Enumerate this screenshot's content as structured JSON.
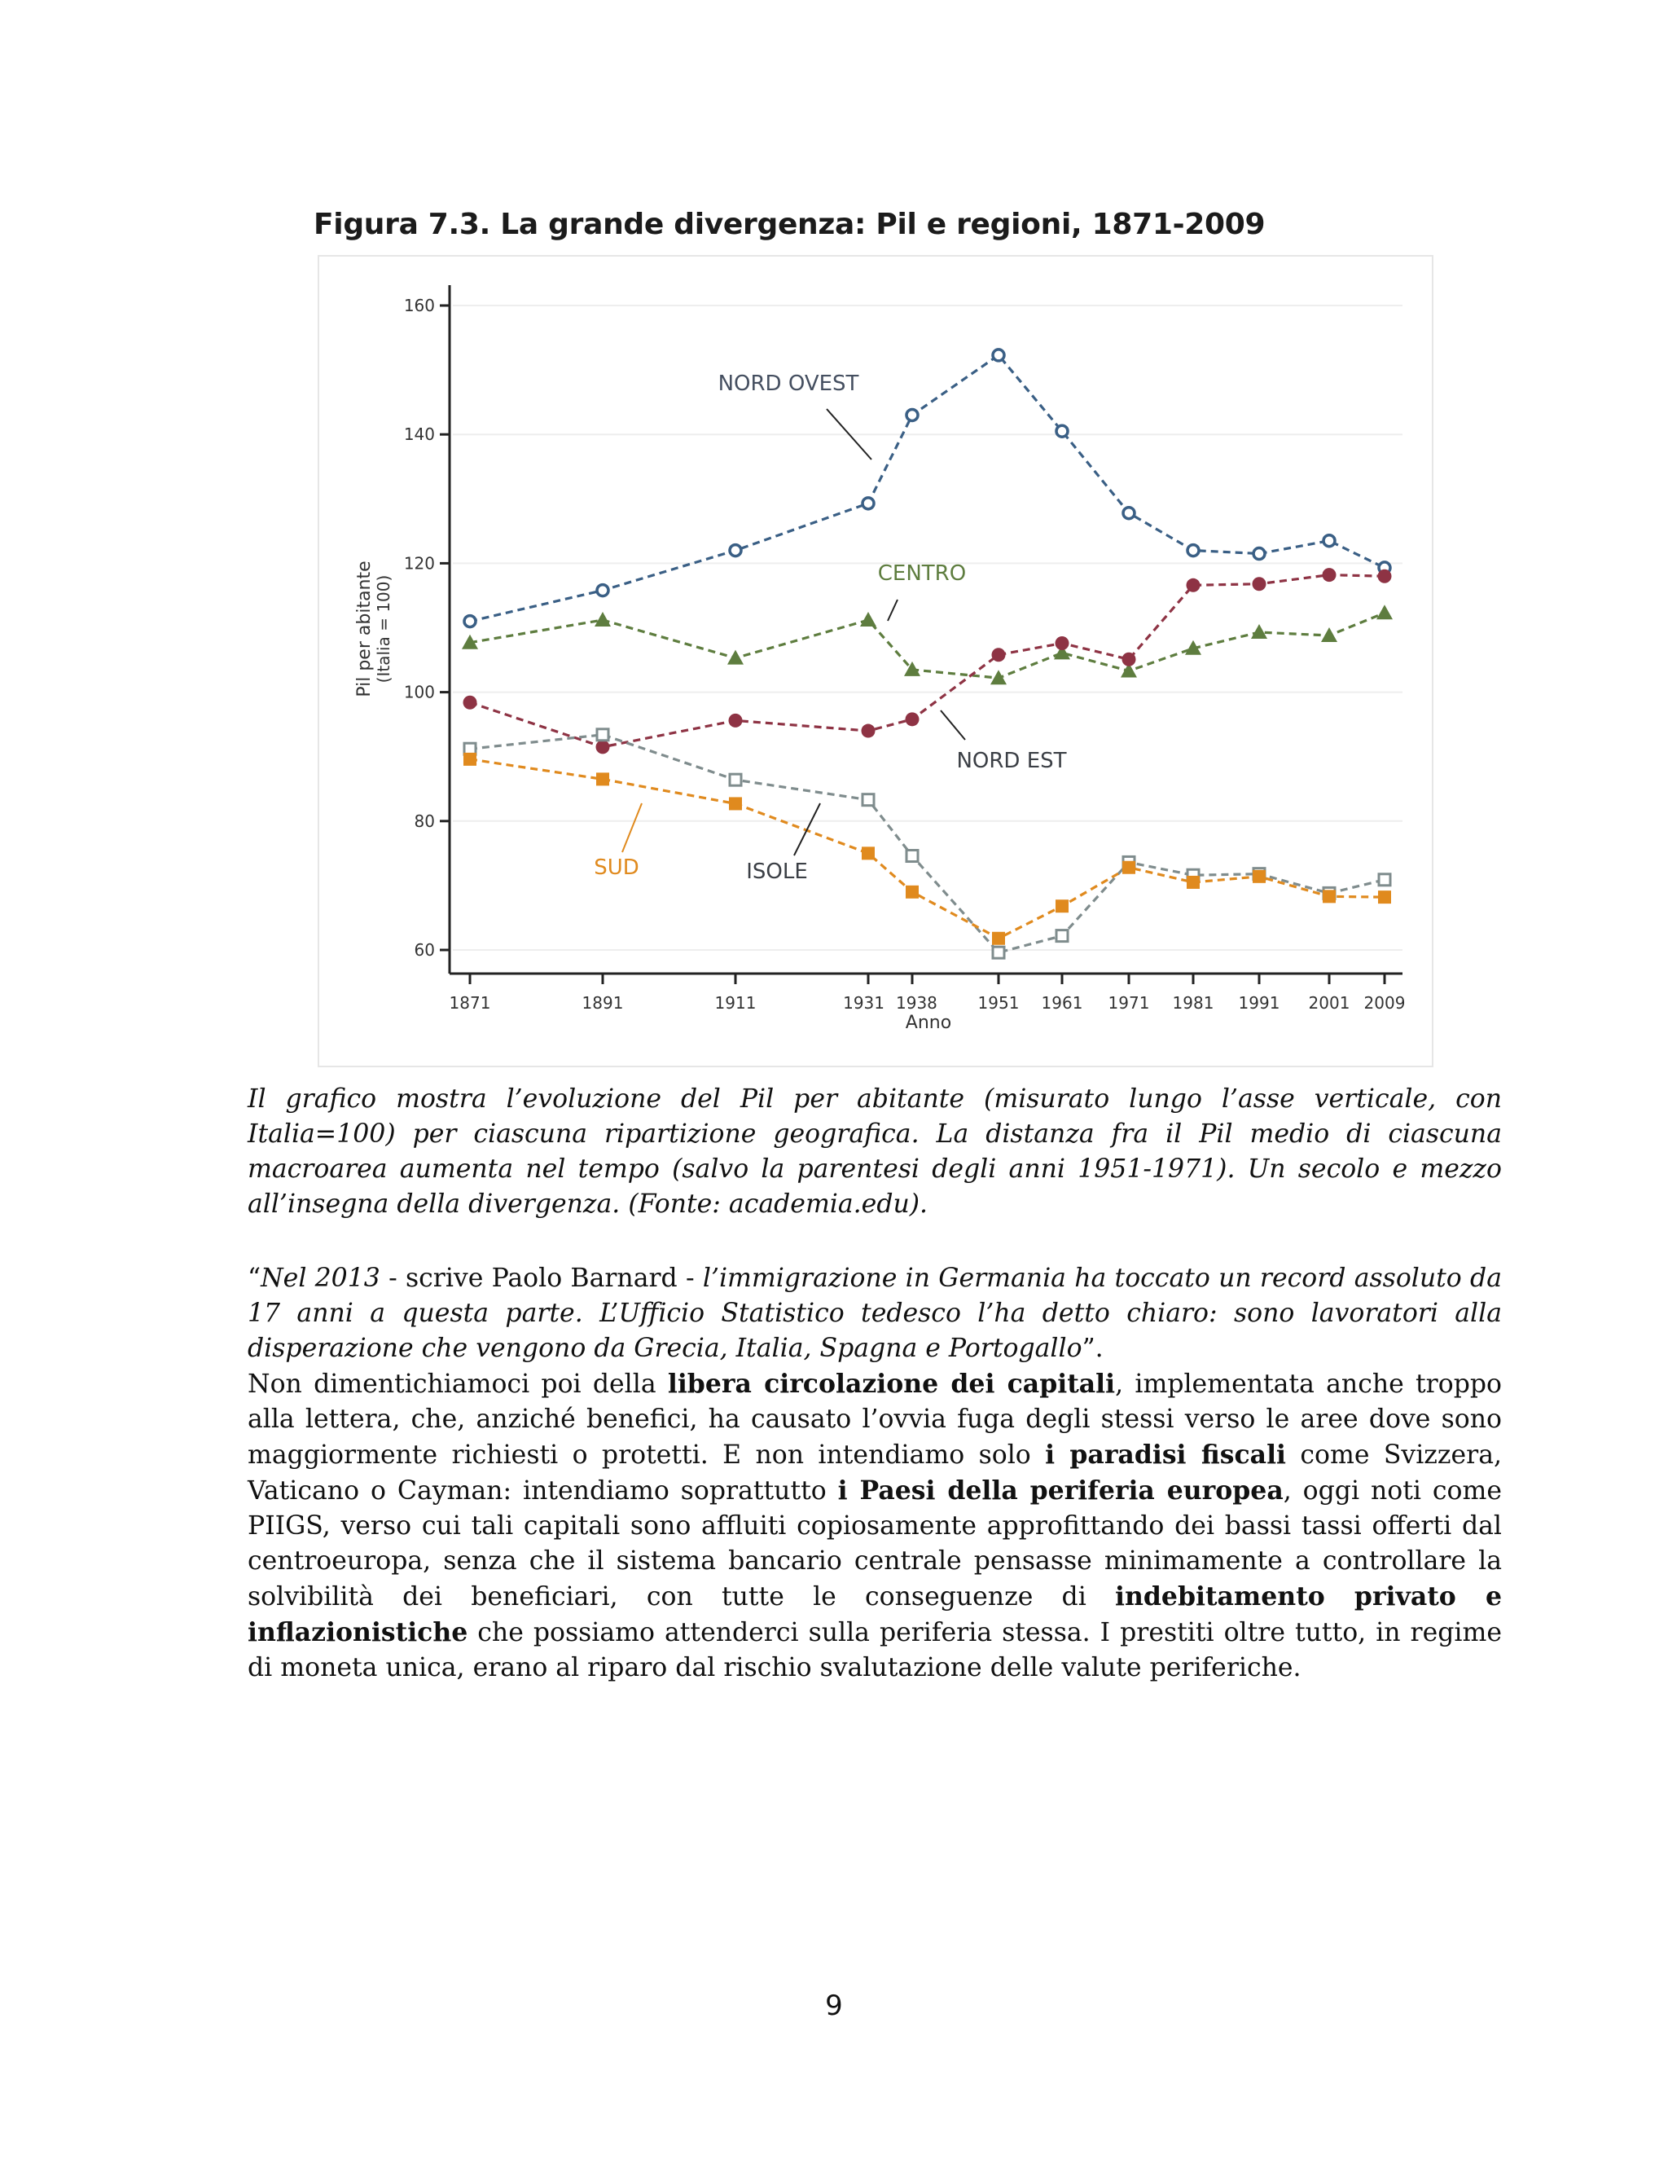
{
  "figure": {
    "title": "Figura 7.3. La grande divergenza: Pil e regioni, 1871-2009"
  },
  "chart_data": {
    "type": "line",
    "title": "",
    "xlabel": "Anno",
    "ylabel": "Pil per abitante",
    "ylabel_sub": "(Italia = 100)",
    "x": [
      1871,
      1891,
      1911,
      1931,
      1938,
      1951,
      1961,
      1971,
      1981,
      1991,
      2001,
      2009
    ],
    "x_tick_labels": [
      "1871",
      "1891",
      "1911",
      "1931",
      "1938",
      "1951",
      "1961",
      "1971",
      "1981",
      "1991",
      "2001",
      "2009"
    ],
    "y_ticks": [
      60,
      80,
      100,
      120,
      140,
      160
    ],
    "y_tick_labels": [
      "60",
      "80",
      "100",
      "120",
      "140",
      "160"
    ],
    "ylim": [
      58,
      162
    ],
    "grid": true,
    "series": [
      {
        "name": "NORD OVEST",
        "color": "#3a5f85",
        "marker": "circle-open",
        "values": [
          111,
          115.8,
          122,
          129.3,
          143,
          152.3,
          140.5,
          127.8,
          122,
          121.5,
          123.5,
          119.3
        ]
      },
      {
        "name": "CENTRO",
        "color": "#5e7d3f",
        "marker": "triangle",
        "values": [
          107.7,
          111.2,
          105.3,
          111.2,
          103.5,
          102.2,
          106.1,
          103.3,
          106.8,
          109.3,
          108.8,
          112.3
        ]
      },
      {
        "name": "NORD EST",
        "color": "#8e3344",
        "marker": "circle",
        "values": [
          98.4,
          91.5,
          95.6,
          94,
          95.8,
          105.8,
          107.6,
          105.1,
          116.6,
          116.8,
          118.2,
          118
        ]
      },
      {
        "name": "ISOLE",
        "color": "#7f8c8d",
        "marker": "square-open",
        "values": [
          91.2,
          93.4,
          86.4,
          83.3,
          74.6,
          59.6,
          62.2,
          73.6,
          71.6,
          71.8,
          68.8,
          70.9
        ]
      },
      {
        "name": "SUD",
        "color": "#e08a1e",
        "marker": "square",
        "values": [
          89.6,
          86.5,
          82.7,
          75,
          69,
          61.8,
          66.8,
          72.8,
          70.5,
          71.4,
          68.3,
          68.2
        ]
      }
    ],
    "labels": [
      {
        "text": "NORD OVEST",
        "color": "#454f60",
        "series": 0
      },
      {
        "text": "CENTRO",
        "color": "#5e7d3f",
        "series": 1
      },
      {
        "text": "NORD EST",
        "color": "#3b3f45",
        "series": 2
      },
      {
        "text": "ISOLE",
        "color": "#3b3f45",
        "series": 3
      },
      {
        "text": "SUD",
        "color": "#e08a1e",
        "series": 4
      }
    ]
  },
  "caption": "Il grafico mostra l’evoluzione del Pil per abitante (misurato lungo l’asse verticale, con Italia=100) per ciascuna ripartizione geografica. La distanza fra il Pil medio di ciascuna macroarea aumenta nel tempo (salvo la parentesi degli anni 1951-1971). Un secolo e mezzo all’insegna della divergenza. (Fonte: academia.edu).",
  "quote": {
    "open": "“",
    "part1": "Nel 2013",
    "part2": " - scrive Paolo Barnard - ",
    "part3": "l’immigrazione in Germania ha toccato un record assoluto da 17 anni a questa parte. L’Ufficio Statistico tedesco l’ha detto chiaro: sono lavoratori alla disperazione che vengono da Grecia, Italia, Spagna e Portogallo",
    "close": "”."
  },
  "paragraph": {
    "t1": "Non dimentichiamoci poi della ",
    "b1": "libera circolazione dei capitali",
    "t2": ", implementata anche troppo alla lettera, che, anziché benefici, ha causato l’ovvia fuga degli stessi verso le aree dove sono maggiormente richiesti o protetti. E non intendiamo solo ",
    "b2": "i paradisi fiscali",
    "t3": " come Svizzera, Vaticano o Cayman: intendiamo soprattutto ",
    "b3": "i Paesi della periferia europea",
    "t4": ", oggi noti come PIIGS, verso cui tali capitali sono affluiti copiosamente approfittando dei bassi tassi offerti dal centroeuropa, senza che il sistema bancario centrale pensasse minimamente a controllare la solvibilità dei beneficiari, con tutte le conseguenze di ",
    "b4": "indebitamento privato e inflazionistiche",
    "t5": " che possiamo attenderci sulla periferia stessa. I prestiti oltre tutto, in regime di moneta unica, erano al riparo dal rischio svalutazione delle valute periferiche."
  },
  "page_number": "9"
}
